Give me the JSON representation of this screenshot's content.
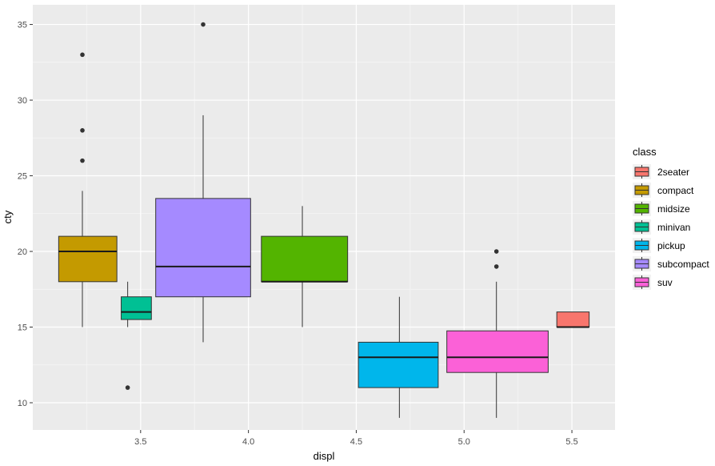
{
  "chart_data": {
    "type": "boxplot",
    "xlabel": "displ",
    "ylabel": "cty",
    "xlim": [
      3.0,
      5.7
    ],
    "ylim": [
      8.2,
      36.3
    ],
    "x_ticks": [
      3.5,
      4.0,
      4.5,
      5.0,
      5.5
    ],
    "x_tick_labels": [
      "3.5",
      "4.0",
      "4.5",
      "5.0",
      "5.5"
    ],
    "y_ticks": [
      10,
      15,
      20,
      25,
      30,
      35
    ],
    "y_tick_labels": [
      "10",
      "15",
      "20",
      "25",
      "30",
      "35"
    ],
    "grid": true,
    "legend": {
      "title": "class",
      "position": "right",
      "items": [
        {
          "label": "2seater",
          "color": "#F8766D"
        },
        {
          "label": "compact",
          "color": "#C49A00"
        },
        {
          "label": "midsize",
          "color": "#53B400"
        },
        {
          "label": "minivan",
          "color": "#00C094"
        },
        {
          "label": "pickup",
          "color": "#00B6EB"
        },
        {
          "label": "subcompact",
          "color": "#A58AFF"
        },
        {
          "label": "suv",
          "color": "#FB61D7"
        }
      ]
    },
    "boxes": [
      {
        "class": "compact",
        "color": "#C49A00",
        "x_center": 3.23,
        "x_left": 3.12,
        "x_right": 3.39,
        "whisker_low": 15,
        "q1": 18,
        "median": 20,
        "q3": 21,
        "whisker_high": 24,
        "outliers": [
          26,
          28,
          33
        ]
      },
      {
        "class": "minivan",
        "color": "#00C094",
        "x_center": 3.44,
        "x_left": 3.41,
        "x_right": 3.55,
        "whisker_low": 15,
        "q1": 15.5,
        "median": 16,
        "q3": 17,
        "whisker_high": 18,
        "outliers": [
          11
        ]
      },
      {
        "class": "subcompact",
        "color": "#A58AFF",
        "x_center": 3.79,
        "x_left": 3.57,
        "x_right": 4.01,
        "whisker_low": 14,
        "q1": 17,
        "median": 19,
        "q3": 23.5,
        "whisker_high": 29,
        "outliers": [
          35
        ]
      },
      {
        "class": "midsize",
        "color": "#53B400",
        "x_center": 4.25,
        "x_left": 4.06,
        "x_right": 4.46,
        "whisker_low": 15,
        "q1": 18,
        "median": 18,
        "q3": 21,
        "whisker_high": 23,
        "outliers": []
      },
      {
        "class": "pickup",
        "color": "#00B6EB",
        "x_center": 4.7,
        "x_left": 4.51,
        "x_right": 4.88,
        "whisker_low": 9,
        "q1": 11,
        "median": 13,
        "q3": 14,
        "whisker_high": 17,
        "outliers": []
      },
      {
        "class": "suv",
        "color": "#FB61D7",
        "x_center": 5.15,
        "x_left": 4.92,
        "x_right": 5.39,
        "whisker_low": 9,
        "q1": 12,
        "median": 13,
        "q3": 14.75,
        "whisker_high": 18,
        "outliers": [
          19,
          20
        ]
      },
      {
        "class": "2seater",
        "color": "#F8766D",
        "x_center": 5.5,
        "x_left": 5.43,
        "x_right": 5.58,
        "whisker_low": 15,
        "q1": 15,
        "median": 15,
        "q3": 16,
        "whisker_high": 16,
        "outliers": []
      }
    ]
  }
}
